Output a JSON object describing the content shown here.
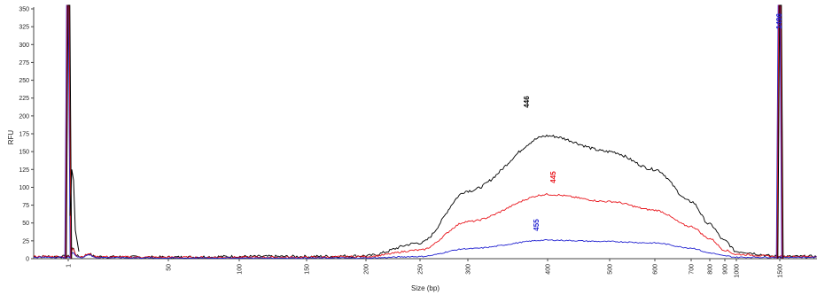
{
  "chart_data": {
    "type": "line",
    "title": "",
    "xlabel": "Size (bp)",
    "ylabel": "RFU",
    "ylim": [
      0,
      350
    ],
    "y_ticks": [
      0,
      25,
      50,
      75,
      100,
      125,
      150,
      175,
      200,
      225,
      250,
      275,
      300,
      325,
      350
    ],
    "x_ticks": [
      "1",
      "50",
      "100",
      "150",
      "200",
      "250",
      "300",
      "400",
      "500",
      "600",
      "700",
      "800",
      "900",
      "1000",
      "1500"
    ],
    "grid": false,
    "legend": "none",
    "series": [
      {
        "color": "#000000",
        "peak_label": "446",
        "points": [
          {
            "x": "1",
            "y": 3
          },
          {
            "x": "50",
            "y": 2
          },
          {
            "x": "100",
            "y": 3
          },
          {
            "x": "150",
            "y": 3
          },
          {
            "x": "200",
            "y": 4
          },
          {
            "x": "250",
            "y": 22
          },
          {
            "x": "300",
            "y": 95
          },
          {
            "x": "400",
            "y": 172
          },
          {
            "x": "500",
            "y": 150
          },
          {
            "x": "600",
            "y": 125
          },
          {
            "x": "700",
            "y": 80
          },
          {
            "x": "800",
            "y": 48
          },
          {
            "x": "900",
            "y": 25
          },
          {
            "x": "1000",
            "y": 10
          },
          {
            "x": "1500",
            "y": 3
          }
        ]
      },
      {
        "color": "#e8141b",
        "peak_label": "445",
        "points": [
          {
            "x": "1",
            "y": 3
          },
          {
            "x": "50",
            "y": 2
          },
          {
            "x": "100",
            "y": 2
          },
          {
            "x": "150",
            "y": 2
          },
          {
            "x": "200",
            "y": 3
          },
          {
            "x": "250",
            "y": 12
          },
          {
            "x": "300",
            "y": 52
          },
          {
            "x": "400",
            "y": 90
          },
          {
            "x": "500",
            "y": 80
          },
          {
            "x": "600",
            "y": 68
          },
          {
            "x": "700",
            "y": 45
          },
          {
            "x": "800",
            "y": 28
          },
          {
            "x": "900",
            "y": 12
          },
          {
            "x": "1000",
            "y": 6
          },
          {
            "x": "1500",
            "y": 3
          }
        ]
      },
      {
        "color": "#2020d0",
        "peak_label": "455",
        "points": [
          {
            "x": "1",
            "y": 2
          },
          {
            "x": "50",
            "y": 1
          },
          {
            "x": "100",
            "y": 1
          },
          {
            "x": "150",
            "y": 1
          },
          {
            "x": "200",
            "y": 1
          },
          {
            "x": "250",
            "y": 3
          },
          {
            "x": "300",
            "y": 14
          },
          {
            "x": "400",
            "y": 26
          },
          {
            "x": "500",
            "y": 24
          },
          {
            "x": "600",
            "y": 22
          },
          {
            "x": "700",
            "y": 15
          },
          {
            "x": "800",
            "y": 8
          },
          {
            "x": "900",
            "y": 4
          },
          {
            "x": "1000",
            "y": 2
          },
          {
            "x": "1500",
            "y": 2
          }
        ]
      }
    ],
    "marker_peaks": [
      {
        "size": "1",
        "label": ""
      },
      {
        "size": "1500",
        "label": "1496",
        "label_color": "#2020d0"
      }
    ]
  }
}
